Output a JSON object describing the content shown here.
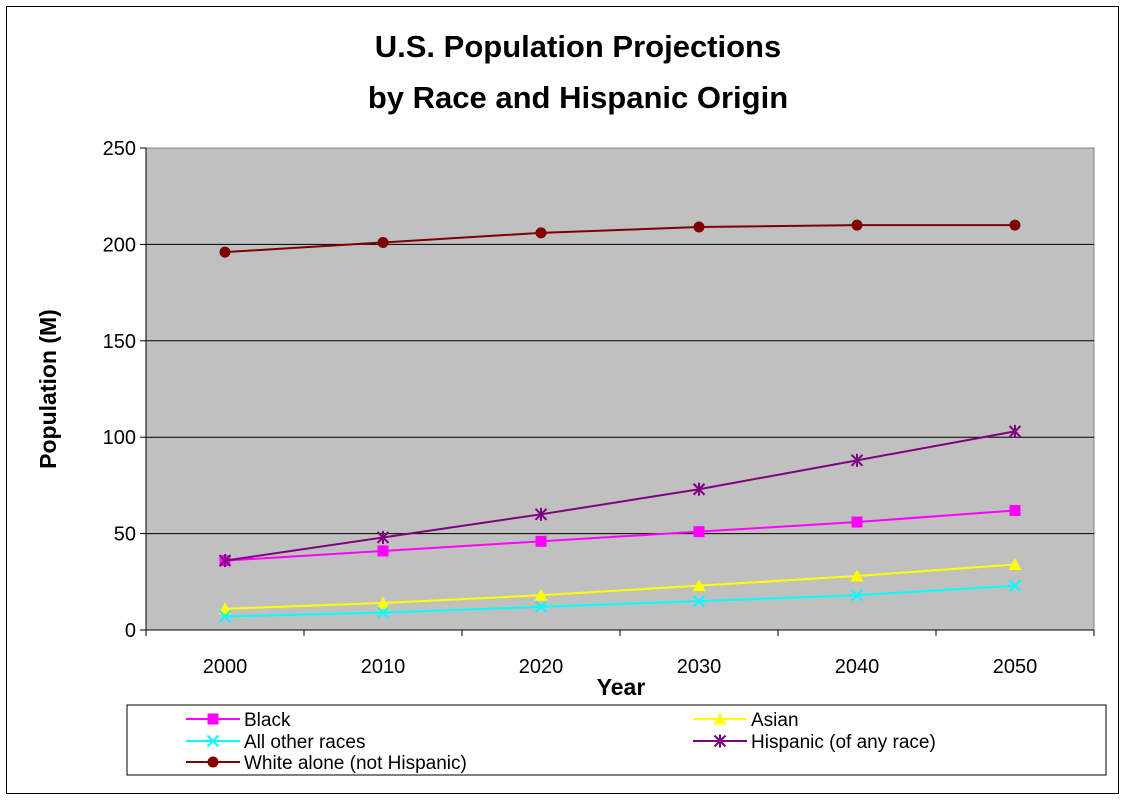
{
  "chart_data": {
    "type": "line",
    "title_line1": "U.S. Population Projections",
    "title_line2": "by Race and Hispanic Origin",
    "xlabel": "Year",
    "ylabel": "Population (M)",
    "ylim": [
      0,
      250
    ],
    "y_ticks": [
      "0",
      "50",
      "100",
      "150",
      "200",
      "250"
    ],
    "categories": [
      "2000",
      "2010",
      "2020",
      "2030",
      "2040",
      "2050"
    ],
    "grid": true,
    "legend_position": "bottom",
    "plot_background": "#c0c0c0",
    "series": [
      {
        "name": "Black",
        "color": "#ff00ff",
        "marker": "square",
        "values": [
          36,
          41,
          46,
          51,
          56,
          62
        ]
      },
      {
        "name": "Asian",
        "color": "#ffff00",
        "marker": "triangle",
        "values": [
          11,
          14,
          18,
          23,
          28,
          34
        ]
      },
      {
        "name": "All other races",
        "color": "#00ffff",
        "marker": "x",
        "values": [
          7,
          9,
          12,
          15,
          18,
          23
        ]
      },
      {
        "name": "Hispanic (of any race)",
        "color": "#800080",
        "marker": "asterisk",
        "values": [
          36,
          48,
          60,
          73,
          88,
          103
        ]
      },
      {
        "name": "White alone (not Hispanic)",
        "color": "#800000",
        "marker": "circle",
        "values": [
          196,
          201,
          206,
          209,
          210,
          210
        ]
      }
    ]
  }
}
